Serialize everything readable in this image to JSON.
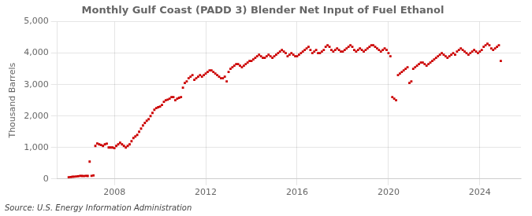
{
  "chart_data": {
    "type": "scatter",
    "title": "Monthly Gulf Coast (PADD 3) Blender Net Input of Fuel Ethanol",
    "ylabel": "Thousand Barrels",
    "annotation": "Source: U.S. Energy Information Administration",
    "color": "#cc0000",
    "marker": "square",
    "grid": true,
    "xlim": [
      2005.5,
      2025.8
    ],
    "xticks": [
      2008,
      2012,
      2016,
      2020,
      2024
    ],
    "ylim": [
      0,
      5000
    ],
    "yticks": [
      0,
      {
        "value": 1000,
        "label": "1,000"
      },
      {
        "value": 2000,
        "label": "2,000"
      },
      {
        "value": 3000,
        "label": "3,000"
      },
      {
        "value": 4000,
        "label": "4,000"
      },
      {
        "value": 5000,
        "label": "5,000"
      }
    ],
    "x": [
      2006.0,
      2006.083,
      2006.167,
      2006.25,
      2006.333,
      2006.417,
      2006.5,
      2006.583,
      2006.667,
      2006.75,
      2006.833,
      2006.917,
      2007.0,
      2007.083,
      2007.167,
      2007.25,
      2007.333,
      2007.417,
      2007.5,
      2007.583,
      2007.667,
      2007.75,
      2007.833,
      2007.917,
      2008.0,
      2008.083,
      2008.167,
      2008.25,
      2008.333,
      2008.417,
      2008.5,
      2008.583,
      2008.667,
      2008.75,
      2008.833,
      2008.917,
      2009.0,
      2009.083,
      2009.167,
      2009.25,
      2009.333,
      2009.417,
      2009.5,
      2009.583,
      2009.667,
      2009.75,
      2009.833,
      2009.917,
      2010.0,
      2010.083,
      2010.167,
      2010.25,
      2010.333,
      2010.417,
      2010.5,
      2010.583,
      2010.667,
      2010.75,
      2010.833,
      2010.917,
      2011.0,
      2011.083,
      2011.167,
      2011.25,
      2011.333,
      2011.417,
      2011.5,
      2011.583,
      2011.667,
      2011.75,
      2011.833,
      2011.917,
      2012.0,
      2012.083,
      2012.167,
      2012.25,
      2012.333,
      2012.417,
      2012.5,
      2012.583,
      2012.667,
      2012.75,
      2012.833,
      2012.917,
      2013.0,
      2013.083,
      2013.167,
      2013.25,
      2013.333,
      2013.417,
      2013.5,
      2013.583,
      2013.667,
      2013.75,
      2013.833,
      2013.917,
      2014.0,
      2014.083,
      2014.167,
      2014.25,
      2014.333,
      2014.417,
      2014.5,
      2014.583,
      2014.667,
      2014.75,
      2014.833,
      2014.917,
      2015.0,
      2015.083,
      2015.167,
      2015.25,
      2015.333,
      2015.417,
      2015.5,
      2015.583,
      2015.667,
      2015.75,
      2015.833,
      2015.917,
      2016.0,
      2016.083,
      2016.167,
      2016.25,
      2016.333,
      2016.417,
      2016.5,
      2016.583,
      2016.667,
      2016.75,
      2016.833,
      2016.917,
      2017.0,
      2017.083,
      2017.167,
      2017.25,
      2017.333,
      2017.417,
      2017.5,
      2017.583,
      2017.667,
      2017.75,
      2017.833,
      2017.917,
      2018.0,
      2018.083,
      2018.167,
      2018.25,
      2018.333,
      2018.417,
      2018.5,
      2018.583,
      2018.667,
      2018.75,
      2018.833,
      2018.917,
      2019.0,
      2019.083,
      2019.167,
      2019.25,
      2019.333,
      2019.417,
      2019.5,
      2019.583,
      2019.667,
      2019.75,
      2019.833,
      2019.917,
      2020.0,
      2020.083,
      2020.167,
      2020.25,
      2020.333,
      2020.417,
      2020.5,
      2020.583,
      2020.667,
      2020.75,
      2020.833,
      2020.917,
      2021.0,
      2021.083,
      2021.167,
      2021.25,
      2021.333,
      2021.417,
      2021.5,
      2021.583,
      2021.667,
      2021.75,
      2021.833,
      2021.917,
      2022.0,
      2022.083,
      2022.167,
      2022.25,
      2022.333,
      2022.417,
      2022.5,
      2022.583,
      2022.667,
      2022.75,
      2022.833,
      2022.917,
      2023.0,
      2023.083,
      2023.167,
      2023.25,
      2023.333,
      2023.417,
      2023.5,
      2023.583,
      2023.667,
      2023.75,
      2023.833,
      2023.917,
      2024.0,
      2024.083,
      2024.167,
      2024.25,
      2024.333,
      2024.417,
      2024.5,
      2024.583,
      2024.667,
      2024.75,
      2024.833,
      2024.917
    ],
    "values": [
      55,
      60,
      70,
      75,
      80,
      85,
      100,
      95,
      90,
      100,
      95,
      550,
      100,
      110,
      1050,
      1130,
      1100,
      1080,
      1050,
      1100,
      1120,
      1000,
      1000,
      1000,
      980,
      1050,
      1100,
      1150,
      1100,
      1050,
      1000,
      1050,
      1100,
      1200,
      1300,
      1350,
      1400,
      1500,
      1600,
      1700,
      1780,
      1850,
      1900,
      2000,
      2100,
      2200,
      2250,
      2280,
      2300,
      2350,
      2450,
      2500,
      2520,
      2550,
      2600,
      2600,
      2500,
      2550,
      2580,
      2600,
      2900,
      3050,
      3100,
      3200,
      3250,
      3300,
      3150,
      3200,
      3250,
      3300,
      3250,
      3300,
      3350,
      3400,
      3450,
      3450,
      3400,
      3350,
      3300,
      3250,
      3200,
      3200,
      3250,
      3100,
      3400,
      3500,
      3550,
      3600,
      3650,
      3650,
      3600,
      3550,
      3600,
      3650,
      3700,
      3750,
      3750,
      3800,
      3850,
      3900,
      3950,
      3900,
      3850,
      3850,
      3900,
      3950,
      3900,
      3850,
      3900,
      3950,
      4000,
      4050,
      4100,
      4050,
      4000,
      3900,
      3950,
      4000,
      3950,
      3900,
      3900,
      3950,
      4000,
      4050,
      4100,
      4150,
      4200,
      4100,
      4000,
      4050,
      4100,
      4000,
      4000,
      4050,
      4100,
      4200,
      4250,
      4200,
      4100,
      4050,
      4100,
      4150,
      4100,
      4050,
      4050,
      4100,
      4150,
      4200,
      4250,
      4200,
      4100,
      4050,
      4100,
      4150,
      4100,
      4050,
      4100,
      4150,
      4200,
      4250,
      4250,
      4200,
      4150,
      4100,
      4050,
      4100,
      4150,
      4100,
      4000,
      3900,
      2600,
      2550,
      2500,
      3300,
      3350,
      3400,
      3450,
      3500,
      3550,
      3050,
      3100,
      3500,
      3550,
      3600,
      3650,
      3700,
      3700,
      3650,
      3600,
      3650,
      3700,
      3750,
      3800,
      3850,
      3900,
      3950,
      4000,
      3950,
      3900,
      3850,
      3900,
      3950,
      4000,
      3950,
      4050,
      4100,
      4150,
      4100,
      4050,
      4000,
      3950,
      4000,
      4050,
      4100,
      4050,
      4000,
      4050,
      4100,
      4200,
      4250,
      4300,
      4250,
      4150,
      4100,
      4150,
      4200,
      4250,
      3750
    ]
  }
}
